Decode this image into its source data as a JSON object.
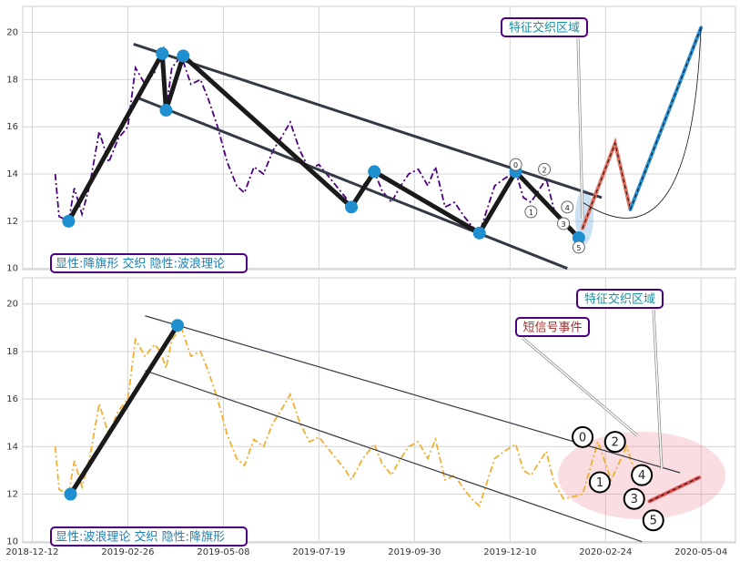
{
  "chart_data": [
    {
      "type": "line",
      "xlim": [
        -5,
        368
      ],
      "xticks": [
        0,
        50,
        100,
        150,
        200,
        250,
        300,
        350
      ],
      "show_xtick_labels": false,
      "ylim": [
        9.95,
        21.1
      ],
      "yticks": [
        10,
        12,
        14,
        16,
        18,
        20
      ],
      "grid": true,
      "series": [
        {
          "color": "#4b0082",
          "style": "dashdot",
          "x": [
            12,
            14,
            19,
            22,
            26,
            30,
            35,
            40,
            45,
            50,
            54,
            59,
            64,
            67,
            70,
            73,
            78,
            83,
            88,
            92,
            97,
            102,
            107,
            111,
            116,
            121,
            126,
            130,
            135,
            140,
            145,
            150,
            154,
            159,
            164,
            167,
            173,
            179,
            183,
            188,
            192,
            197,
            202,
            207,
            211,
            216,
            221,
            226,
            230,
            234,
            238,
            242,
            247,
            253,
            257,
            261,
            269,
            273,
            278,
            283,
            286
          ],
          "values": [
            14.0,
            12.2,
            12.0,
            13.4,
            12.3,
            13.5,
            15.8,
            14.5,
            15.5,
            16.0,
            18.5,
            17.8,
            18.3,
            19.1,
            16.7,
            18.5,
            19.0,
            17.8,
            18.0,
            17.2,
            16.0,
            14.5,
            13.5,
            13.2,
            14.3,
            14.0,
            15.0,
            15.5,
            16.2,
            15.0,
            14.2,
            14.4,
            14.0,
            13.5,
            13.0,
            12.6,
            13.5,
            14.1,
            13.3,
            12.8,
            13.4,
            14.0,
            14.2,
            13.5,
            14.3,
            12.6,
            12.8,
            12.2,
            11.8,
            11.5,
            12.5,
            13.5,
            13.8,
            14.1,
            13.0,
            12.8,
            13.8,
            12.5,
            11.8,
            11.5,
            11.3
          ]
        }
      ],
      "zigzag": {
        "color": "#1a1a1a",
        "x": [
          19,
          68,
          70,
          79,
          167,
          179,
          234,
          253,
          286
        ],
        "values": [
          12.0,
          19.1,
          16.7,
          19.0,
          12.6,
          14.1,
          11.5,
          14.1,
          11.3
        ]
      },
      "channel": [
        {
          "x": [
            53,
            298
          ],
          "values": [
            19.5,
            13.0
          ]
        },
        {
          "x": [
            56,
            280
          ],
          "values": [
            17.2,
            10.0
          ]
        }
      ],
      "waves": [
        {
          "label": "0",
          "x": 253,
          "value": 14.4
        },
        {
          "label": "1",
          "x": 261,
          "value": 12.4
        },
        {
          "label": "2",
          "x": 268,
          "value": 14.2
        },
        {
          "label": "3",
          "x": 278,
          "value": 11.9
        },
        {
          "label": "4",
          "x": 280,
          "value": 12.6
        },
        {
          "label": "5",
          "x": 286,
          "value": 10.9
        }
      ],
      "projection": [
        {
          "color": "#e07060",
          "x": [
            288,
            305,
            313
          ],
          "values": [
            11.7,
            15.3,
            12.5
          ]
        },
        {
          "color": "#2a8fd0",
          "x": [
            313,
            350
          ],
          "values": [
            12.5,
            20.2
          ]
        }
      ],
      "annotations": [
        "特征交织区域"
      ],
      "label": "显性:降旗形 交织 隐性:波浪理论"
    },
    {
      "type": "line",
      "xlim": [
        -5,
        368
      ],
      "xticks": [
        {
          "value": 0,
          "label": "2018-12-12"
        },
        {
          "value": 50,
          "label": "2019-02-26"
        },
        {
          "value": 100,
          "label": "2019-05-08"
        },
        {
          "value": 150,
          "label": "2019-07-19"
        },
        {
          "value": 200,
          "label": "2019-09-30"
        },
        {
          "value": 250,
          "label": "2019-12-10"
        },
        {
          "value": 300,
          "label": "2020-02-24"
        },
        {
          "value": 350,
          "label": "2020-05-04"
        }
      ],
      "show_xtick_labels": true,
      "ylim": [
        9.95,
        21.1
      ],
      "yticks": [
        10,
        12,
        14,
        16,
        18,
        20
      ],
      "grid": true,
      "series": [
        {
          "color": "#f0b030",
          "style": "dashdot",
          "x": [
            12,
            14,
            19,
            22,
            26,
            30,
            35,
            40,
            45,
            50,
            54,
            59,
            64,
            67,
            70,
            73,
            78,
            83,
            88,
            92,
            97,
            102,
            107,
            111,
            116,
            121,
            126,
            130,
            135,
            140,
            145,
            150,
            154,
            159,
            164,
            167,
            173,
            179,
            183,
            188,
            192,
            197,
            202,
            207,
            211,
            216,
            221,
            226,
            230,
            234,
            238,
            242,
            247,
            253,
            257,
            261,
            269,
            273,
            278,
            288,
            296,
            303,
            311,
            318,
            322
          ],
          "values": [
            14.0,
            12.2,
            12.0,
            13.4,
            12.3,
            13.5,
            15.8,
            14.5,
            15.5,
            16.0,
            18.5,
            17.8,
            18.3,
            18.0,
            17.3,
            18.5,
            19.0,
            17.8,
            18.0,
            17.2,
            16.0,
            14.5,
            13.5,
            13.2,
            14.3,
            14.0,
            15.0,
            15.5,
            16.2,
            15.0,
            14.2,
            14.4,
            14.0,
            13.5,
            13.0,
            12.6,
            13.5,
            14.1,
            13.3,
            12.8,
            13.4,
            14.0,
            14.2,
            13.5,
            14.3,
            12.6,
            12.8,
            12.2,
            11.8,
            11.5,
            12.5,
            13.5,
            13.8,
            14.1,
            13.0,
            12.8,
            13.8,
            12.5,
            11.8,
            12.0,
            14.2,
            12.6,
            14.0,
            12.3,
            12.8
          ]
        }
      ],
      "zigzag": {
        "color": "#1a1a1a",
        "x": [
          20,
          76
        ],
        "values": [
          12.0,
          19.1
        ]
      },
      "channel": [
        {
          "x": [
            59,
            339
          ],
          "values": [
            19.5,
            12.9
          ]
        },
        {
          "x": [
            59,
            319
          ],
          "values": [
            17.2,
            10.0
          ]
        }
      ],
      "waves": [
        {
          "label": "0",
          "x": 288,
          "value": 14.4
        },
        {
          "label": "1",
          "x": 297,
          "value": 12.5
        },
        {
          "label": "2",
          "x": 305,
          "value": 14.2
        },
        {
          "label": "3",
          "x": 315,
          "value": 11.8
        },
        {
          "label": "4",
          "x": 319,
          "value": 12.8
        },
        {
          "label": "5",
          "x": 325,
          "value": 10.9
        }
      ],
      "projection": [
        {
          "color": "#e05050",
          "x": [
            323,
            349
          ],
          "values": [
            11.7,
            12.7
          ]
        }
      ],
      "annotations": [
        "特征交织区域",
        "短信号事件"
      ],
      "label": "显性:波浪理论 交织 隐性:降旗形"
    }
  ]
}
